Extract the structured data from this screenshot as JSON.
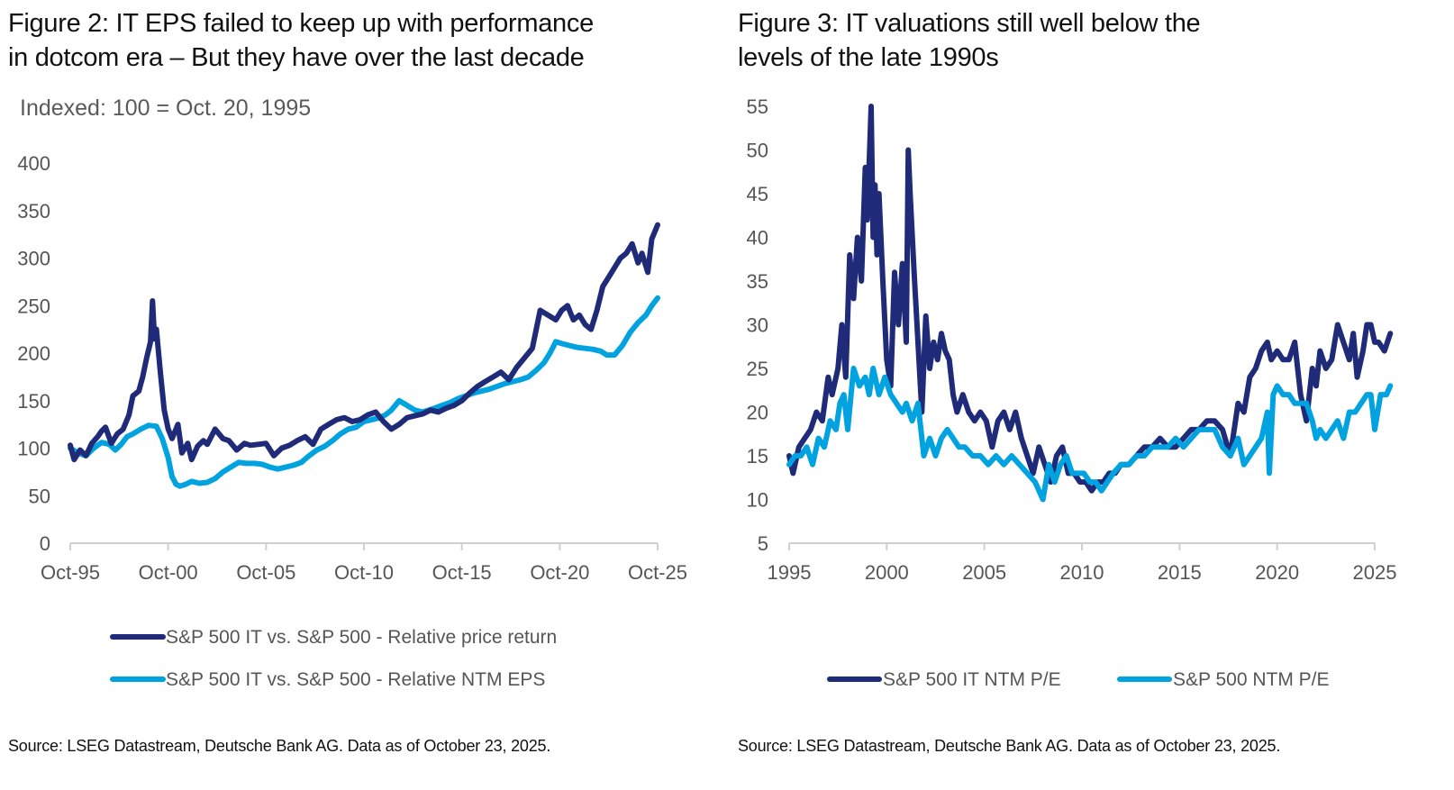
{
  "colors": {
    "dark": "#1f2a78",
    "light": "#00a3e0",
    "axis": "#d0d0d0"
  },
  "chart_data": [
    {
      "type": "line",
      "title": "Figure 2: IT EPS failed to keep up with performance in dotcom era – But they have over the last decade",
      "title_lines": [
        "Figure 2: IT EPS failed to keep up with performance",
        "in dotcom era – But they have over the last decade"
      ],
      "subtitle": "Indexed: 100 = Oct. 20, 1995",
      "xlabel": "",
      "ylabel": "",
      "xlim": [
        1995.8,
        2025.8
      ],
      "ylim": [
        0,
        400
      ],
      "yticks": [
        0,
        50,
        100,
        150,
        200,
        250,
        300,
        350,
        400
      ],
      "ytick_labels": [
        "0",
        "50",
        "100",
        "150",
        "200",
        "250",
        "300",
        "350",
        "400"
      ],
      "xticks": [
        1995.8,
        2000.8,
        2005.8,
        2010.8,
        2015.8,
        2020.8,
        2025.8
      ],
      "xtick_labels": [
        "Oct-95",
        "Oct-00",
        "Oct-05",
        "Oct-10",
        "Oct-15",
        "Oct-20",
        "Oct-25"
      ],
      "grid": false,
      "legend_position": "bottom",
      "series": [
        {
          "name": "S&P 500 IT vs. S&P 500 - Relative price return",
          "color_key": "dark",
          "x": [
            1995.8,
            1996.0,
            1996.3,
            1996.6,
            1996.9,
            1997.2,
            1997.4,
            1997.6,
            1997.9,
            1998.2,
            1998.5,
            1998.8,
            1999.0,
            1999.3,
            1999.5,
            1999.7,
            1999.9,
            2000.0,
            2000.1,
            2000.2,
            2000.4,
            2000.6,
            2000.8,
            2001.0,
            2001.3,
            2001.5,
            2001.8,
            2002.0,
            2002.3,
            2002.6,
            2002.8,
            2003.2,
            2003.6,
            2003.9,
            2004.3,
            2004.7,
            2005.0,
            2005.4,
            2005.8,
            2006.2,
            2006.6,
            2007.0,
            2007.4,
            2007.8,
            2008.2,
            2008.6,
            2009.0,
            2009.4,
            2009.8,
            2010.2,
            2010.6,
            2011.0,
            2011.4,
            2011.8,
            2012.2,
            2012.6,
            2013.0,
            2013.4,
            2013.8,
            2014.2,
            2014.6,
            2015.0,
            2015.4,
            2015.8,
            2016.2,
            2016.6,
            2017.0,
            2017.4,
            2017.8,
            2018.2,
            2018.6,
            2019.0,
            2019.4,
            2019.8,
            2020.2,
            2020.6,
            2020.9,
            2021.2,
            2021.5,
            2021.8,
            2022.1,
            2022.4,
            2022.7,
            2023.0,
            2023.3,
            2023.6,
            2023.9,
            2024.2,
            2024.5,
            2024.8,
            2025.0,
            2025.3,
            2025.5,
            2025.8
          ],
          "values": [
            103,
            88,
            98,
            92,
            105,
            112,
            118,
            122,
            105,
            115,
            120,
            135,
            155,
            160,
            175,
            195,
            212,
            255,
            215,
            225,
            180,
            140,
            120,
            110,
            125,
            95,
            105,
            88,
            102,
            108,
            104,
            120,
            110,
            108,
            98,
            105,
            103,
            104,
            105,
            92,
            100,
            103,
            108,
            112,
            104,
            120,
            125,
            130,
            132,
            128,
            130,
            135,
            138,
            128,
            120,
            125,
            132,
            134,
            136,
            140,
            138,
            142,
            145,
            150,
            158,
            165,
            170,
            175,
            180,
            172,
            185,
            195,
            205,
            245,
            240,
            235,
            245,
            250,
            235,
            240,
            230,
            225,
            245,
            270,
            280,
            290,
            300,
            305,
            315,
            295,
            305,
            285,
            320,
            335
          ]
        },
        {
          "name": "S&P 500 IT vs. S&P 500 - Relative NTM EPS",
          "color_key": "light",
          "x": [
            1995.8,
            1996.2,
            1996.6,
            1997.0,
            1997.4,
            1997.8,
            1998.1,
            1998.4,
            1998.7,
            1999.0,
            1999.4,
            1999.8,
            2000.2,
            2000.5,
            2000.8,
            2001.0,
            2001.2,
            2001.4,
            2001.7,
            2002.0,
            2002.4,
            2002.8,
            2003.2,
            2003.6,
            2004.0,
            2004.4,
            2004.8,
            2005.2,
            2005.6,
            2006.0,
            2006.4,
            2006.8,
            2007.2,
            2007.6,
            2008.0,
            2008.4,
            2008.8,
            2009.2,
            2009.6,
            2010.0,
            2010.4,
            2010.8,
            2011.2,
            2011.6,
            2011.9,
            2012.2,
            2012.6,
            2013.0,
            2013.4,
            2013.8,
            2014.1,
            2014.4,
            2014.8,
            2015.2,
            2015.6,
            2016.0,
            2016.4,
            2016.8,
            2017.2,
            2017.6,
            2018.0,
            2018.4,
            2018.8,
            2019.2,
            2019.6,
            2020.0,
            2020.3,
            2020.6,
            2020.9,
            2021.3,
            2021.7,
            2022.1,
            2022.5,
            2022.9,
            2023.2,
            2023.6,
            2024.0,
            2024.4,
            2024.8,
            2025.2,
            2025.5,
            2025.8
          ],
          "values": [
            100,
            95,
            92,
            100,
            106,
            104,
            98,
            104,
            112,
            115,
            120,
            124,
            123,
            110,
            90,
            70,
            62,
            60,
            62,
            65,
            63,
            64,
            68,
            75,
            80,
            85,
            84,
            84,
            83,
            80,
            78,
            80,
            82,
            85,
            92,
            98,
            102,
            108,
            115,
            120,
            122,
            128,
            130,
            132,
            135,
            140,
            150,
            145,
            140,
            138,
            140,
            142,
            145,
            148,
            152,
            155,
            158,
            160,
            162,
            165,
            168,
            170,
            172,
            175,
            182,
            190,
            200,
            212,
            210,
            208,
            206,
            205,
            204,
            202,
            198,
            198,
            208,
            222,
            232,
            240,
            250,
            258
          ]
        }
      ]
    },
    {
      "type": "line",
      "title": "Figure 3: IT valuations still well below the levels of the late 1990s",
      "title_lines": [
        "Figure 3: IT valuations still well below the",
        "levels of the late 1990s"
      ],
      "xlabel": "",
      "ylabel": "",
      "xlim": [
        1995,
        2025
      ],
      "ylim": [
        5,
        55
      ],
      "yticks": [
        5,
        10,
        15,
        20,
        25,
        30,
        35,
        40,
        45,
        50,
        55
      ],
      "ytick_labels": [
        "5",
        "10",
        "15",
        "20",
        "25",
        "30",
        "35",
        "40",
        "45",
        "50",
        "55"
      ],
      "xticks": [
        1995,
        2000,
        2005,
        2010,
        2015,
        2020,
        2025
      ],
      "xtick_labels": [
        "1995",
        "2000",
        "2005",
        "2010",
        "2015",
        "2020",
        "2025"
      ],
      "grid": false,
      "legend_position": "bottom",
      "series": [
        {
          "name": "S&P 500 IT NTM P/E",
          "color_key": "dark",
          "x": [
            1995.0,
            1995.2,
            1995.5,
            1995.8,
            1996.1,
            1996.4,
            1996.7,
            1997.0,
            1997.2,
            1997.5,
            1997.7,
            1997.9,
            1998.1,
            1998.3,
            1998.5,
            1998.7,
            1998.9,
            1999.0,
            1999.2,
            1999.3,
            1999.4,
            1999.5,
            1999.6,
            1999.8,
            2000.0,
            2000.2,
            2000.4,
            2000.6,
            2000.8,
            2001.0,
            2001.1,
            2001.2,
            2001.4,
            2001.6,
            2001.8,
            2002.0,
            2002.2,
            2002.4,
            2002.6,
            2002.8,
            2003.0,
            2003.2,
            2003.4,
            2003.6,
            2003.9,
            2004.2,
            2004.5,
            2004.8,
            2005.1,
            2005.4,
            2005.7,
            2006.0,
            2006.3,
            2006.6,
            2006.9,
            2007.2,
            2007.5,
            2007.8,
            2008.1,
            2008.4,
            2008.7,
            2009.0,
            2009.3,
            2009.6,
            2009.9,
            2010.2,
            2010.5,
            2010.8,
            2011.1,
            2011.4,
            2011.7,
            2012.0,
            2012.4,
            2012.8,
            2013.2,
            2013.6,
            2014.0,
            2014.4,
            2014.8,
            2015.2,
            2015.6,
            2016.0,
            2016.4,
            2016.8,
            2017.2,
            2017.6,
            2018.0,
            2018.3,
            2018.6,
            2018.9,
            2019.2,
            2019.5,
            2019.7,
            2020.0,
            2020.3,
            2020.6,
            2020.9,
            2021.2,
            2021.5,
            2021.8,
            2022.0,
            2022.2,
            2022.5,
            2022.8,
            2023.1,
            2023.4,
            2023.7,
            2023.9,
            2024.1,
            2024.4,
            2024.6,
            2024.8,
            2025.0,
            2025.2,
            2025.5,
            2025.8
          ],
          "values": [
            15,
            13,
            16,
            17,
            18,
            20,
            19,
            24,
            22,
            25,
            30,
            24,
            38,
            33,
            40,
            35,
            48,
            42,
            55,
            40,
            46,
            38,
            45,
            35,
            26,
            23,
            36,
            30,
            37,
            28,
            50,
            45,
            36,
            28,
            20,
            31,
            25,
            28,
            26,
            29,
            27,
            26,
            22,
            20,
            22,
            20,
            19,
            20,
            19,
            16,
            19,
            20,
            18,
            20,
            17,
            15,
            13,
            16,
            14,
            12,
            15,
            16,
            13,
            13,
            12,
            12,
            11,
            12,
            12,
            13,
            13,
            14,
            14,
            15,
            16,
            16,
            17,
            16,
            16,
            17,
            18,
            18,
            19,
            19,
            18,
            15,
            21,
            20,
            24,
            25,
            27,
            28,
            26,
            27,
            26,
            26,
            28,
            22,
            19,
            25,
            23,
            27,
            25,
            26,
            30,
            28,
            26,
            29,
            24,
            27,
            30,
            30,
            28,
            28,
            27,
            29
          ]
        },
        {
          "name": "S&P 500 NTM P/E",
          "color_key": "light",
          "x": [
            1995.0,
            1995.3,
            1995.6,
            1995.9,
            1996.2,
            1996.5,
            1996.8,
            1997.1,
            1997.4,
            1997.6,
            1997.8,
            1998.0,
            1998.3,
            1998.6,
            1998.9,
            1999.1,
            1999.3,
            1999.6,
            1999.9,
            2000.2,
            2000.5,
            2000.8,
            2001.0,
            2001.3,
            2001.6,
            2001.9,
            2002.2,
            2002.5,
            2002.8,
            2003.1,
            2003.4,
            2003.7,
            2004.0,
            2004.4,
            2004.8,
            2005.2,
            2005.6,
            2006.0,
            2006.4,
            2006.8,
            2007.2,
            2007.6,
            2008.0,
            2008.3,
            2008.6,
            2008.9,
            2009.2,
            2009.5,
            2009.8,
            2010.1,
            2010.4,
            2010.7,
            2011.0,
            2011.3,
            2011.6,
            2012.0,
            2012.4,
            2012.8,
            2013.2,
            2013.6,
            2014.0,
            2014.4,
            2014.8,
            2015.2,
            2015.6,
            2016.0,
            2016.4,
            2016.8,
            2017.2,
            2017.6,
            2018.0,
            2018.3,
            2018.6,
            2018.9,
            2019.2,
            2019.5,
            2019.6,
            2019.8,
            2020.0,
            2020.3,
            2020.6,
            2020.9,
            2021.2,
            2021.5,
            2021.8,
            2022.0,
            2022.2,
            2022.5,
            2022.8,
            2023.1,
            2023.4,
            2023.7,
            2024.0,
            2024.3,
            2024.6,
            2024.8,
            2025.0,
            2025.3,
            2025.6,
            2025.8
          ],
          "values": [
            14,
            15,
            15,
            16,
            14,
            17,
            16,
            19,
            18,
            21,
            22,
            18,
            25,
            23,
            24,
            22,
            25,
            22,
            24,
            22,
            21,
            20,
            21,
            19,
            21,
            15,
            17,
            15,
            17,
            18,
            17,
            16,
            16,
            15,
            15,
            14,
            15,
            14,
            15,
            14,
            13,
            12,
            10,
            14,
            12,
            14,
            15,
            13,
            13,
            13,
            12,
            12,
            11,
            12,
            13,
            14,
            14,
            15,
            15,
            16,
            16,
            16,
            17,
            16,
            17,
            18,
            18,
            18,
            16,
            15,
            17,
            14,
            15,
            16,
            17,
            20,
            13,
            22,
            23,
            22,
            22,
            21,
            21,
            21,
            19,
            17,
            18,
            17,
            18,
            19,
            17,
            20,
            20,
            21,
            22,
            22,
            18,
            22,
            22,
            23
          ]
        }
      ]
    }
  ],
  "source_left": "Source: LSEG Datastream, Deutsche Bank AG. Data as of October 23, 2025.",
  "source_right": "Source: LSEG Datastream, Deutsche Bank AG. Data as of October 23, 2025."
}
